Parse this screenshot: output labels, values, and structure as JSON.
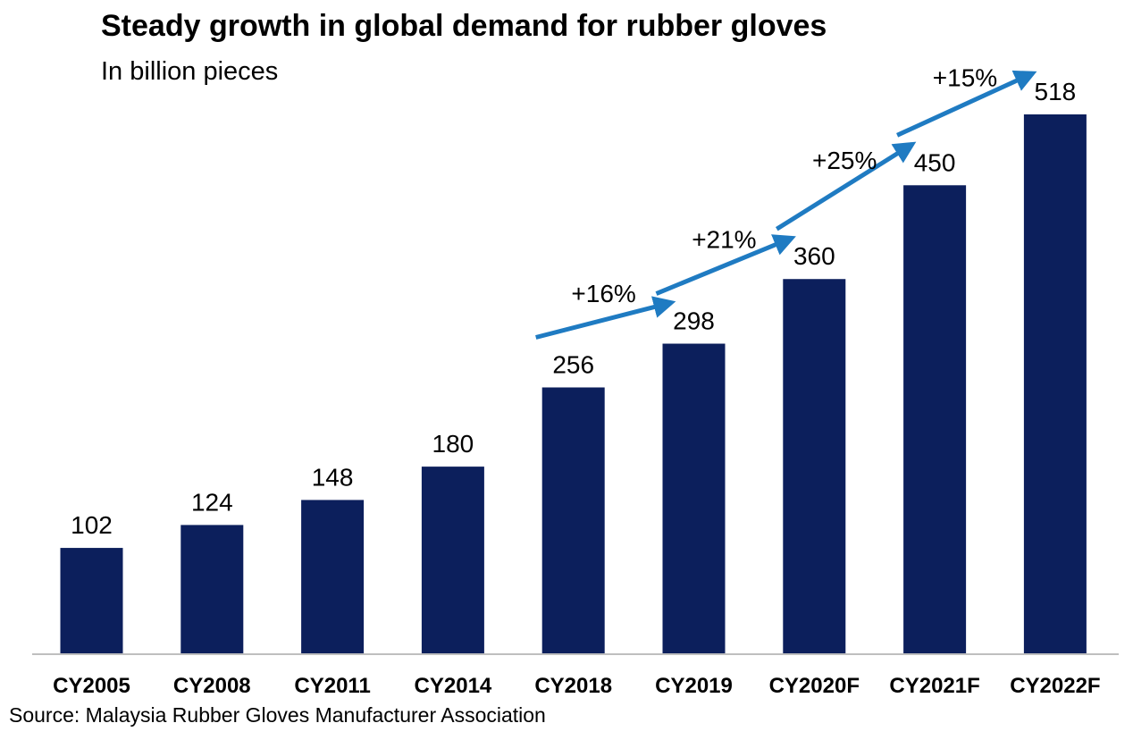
{
  "chart_data": {
    "type": "bar",
    "title": "Steady growth in global demand for rubber gloves",
    "subtitle": "In billion pieces",
    "source": "Source: Malaysia Rubber Gloves Manufacturer Association",
    "categories": [
      "CY2005",
      "CY2008",
      "CY2011",
      "CY2014",
      "CY2018",
      "CY2019",
      "CY2020F",
      "CY2021F",
      "CY2022F"
    ],
    "values": [
      102,
      124,
      148,
      180,
      256,
      298,
      360,
      450,
      518
    ],
    "ylim": [
      0,
      518
    ],
    "grid": false,
    "bar_color": "#0c1f5c",
    "arrow_color": "#1f7bc2",
    "growth_annotations": [
      {
        "from": "CY2018",
        "to": "CY2019",
        "label": "+16%"
      },
      {
        "from": "CY2019",
        "to": "CY2020F",
        "label": "+21%"
      },
      {
        "from": "CY2020F",
        "to": "CY2021F",
        "label": "+25%"
      },
      {
        "from": "CY2021F",
        "to": "CY2022F",
        "label": "+15%"
      }
    ]
  }
}
